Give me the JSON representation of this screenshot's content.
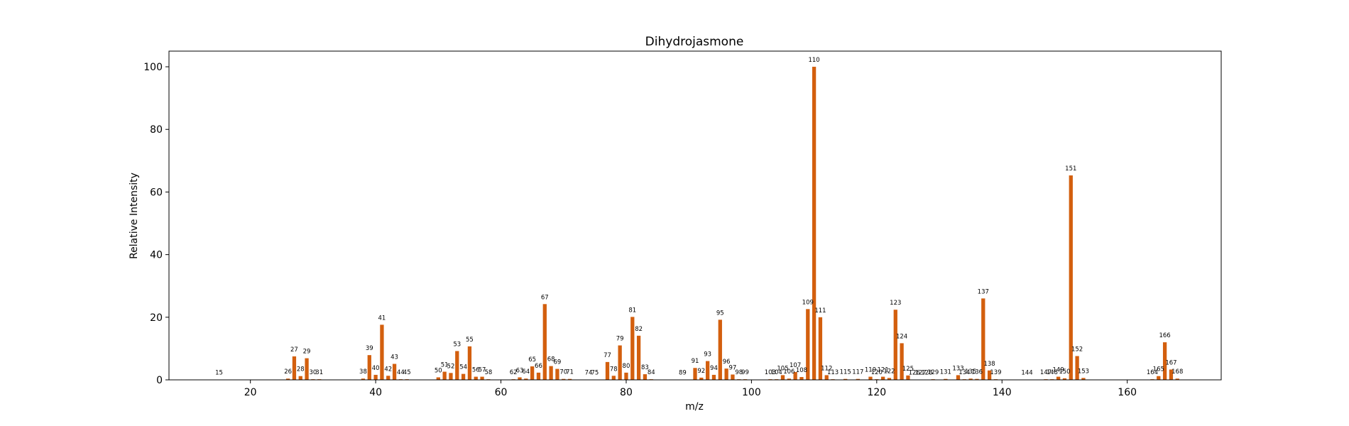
{
  "chart_data": {
    "type": "bar",
    "title": "Dihydrojasmone",
    "xlabel": "m/z",
    "ylabel": "Relative Intensity",
    "xlim": [
      7,
      175
    ],
    "ylim": [
      0,
      105
    ],
    "xticks": [
      20,
      40,
      60,
      80,
      100,
      120,
      140,
      160
    ],
    "yticks": [
      0,
      20,
      40,
      60,
      80,
      100
    ],
    "grid": false,
    "bar_color": "#d35f0e",
    "peaks": [
      {
        "mz": 15,
        "intensity": 0.1
      },
      {
        "mz": 26,
        "intensity": 0.4
      },
      {
        "mz": 27,
        "intensity": 7.5
      },
      {
        "mz": 28,
        "intensity": 1.2
      },
      {
        "mz": 29,
        "intensity": 6.9
      },
      {
        "mz": 30,
        "intensity": 0.2
      },
      {
        "mz": 31,
        "intensity": 0.2
      },
      {
        "mz": 38,
        "intensity": 0.4
      },
      {
        "mz": 39,
        "intensity": 7.9
      },
      {
        "mz": 40,
        "intensity": 1.6
      },
      {
        "mz": 41,
        "intensity": 17.6
      },
      {
        "mz": 42,
        "intensity": 1.3
      },
      {
        "mz": 43,
        "intensity": 5.1
      },
      {
        "mz": 44,
        "intensity": 0.2
      },
      {
        "mz": 45,
        "intensity": 0.2
      },
      {
        "mz": 50,
        "intensity": 0.8
      },
      {
        "mz": 51,
        "intensity": 2.6
      },
      {
        "mz": 52,
        "intensity": 2.2
      },
      {
        "mz": 53,
        "intensity": 9.2
      },
      {
        "mz": 54,
        "intensity": 1.9
      },
      {
        "mz": 55,
        "intensity": 10.7
      },
      {
        "mz": 56,
        "intensity": 1.0
      },
      {
        "mz": 57,
        "intensity": 1.0
      },
      {
        "mz": 58,
        "intensity": 0.2
      },
      {
        "mz": 62,
        "intensity": 0.2
      },
      {
        "mz": 63,
        "intensity": 0.8
      },
      {
        "mz": 64,
        "intensity": 0.4
      },
      {
        "mz": 65,
        "intensity": 4.3
      },
      {
        "mz": 66,
        "intensity": 2.3
      },
      {
        "mz": 67,
        "intensity": 24.2
      },
      {
        "mz": 68,
        "intensity": 4.4
      },
      {
        "mz": 69,
        "intensity": 3.5
      },
      {
        "mz": 70,
        "intensity": 0.3
      },
      {
        "mz": 71,
        "intensity": 0.3
      },
      {
        "mz": 74,
        "intensity": 0.1
      },
      {
        "mz": 75,
        "intensity": 0.1
      },
      {
        "mz": 77,
        "intensity": 5.7
      },
      {
        "mz": 78,
        "intensity": 1.3
      },
      {
        "mz": 79,
        "intensity": 11.0
      },
      {
        "mz": 80,
        "intensity": 2.3
      },
      {
        "mz": 81,
        "intensity": 20.1
      },
      {
        "mz": 82,
        "intensity": 14.1
      },
      {
        "mz": 83,
        "intensity": 1.8
      },
      {
        "mz": 84,
        "intensity": 0.2
      },
      {
        "mz": 89,
        "intensity": 0.1
      },
      {
        "mz": 91,
        "intensity": 3.8
      },
      {
        "mz": 92,
        "intensity": 0.7
      },
      {
        "mz": 93,
        "intensity": 6.0
      },
      {
        "mz": 94,
        "intensity": 1.6
      },
      {
        "mz": 95,
        "intensity": 19.2
      },
      {
        "mz": 96,
        "intensity": 3.6
      },
      {
        "mz": 97,
        "intensity": 1.7
      },
      {
        "mz": 98,
        "intensity": 0.2
      },
      {
        "mz": 99,
        "intensity": 0.2
      },
      {
        "mz": 103,
        "intensity": 0.2
      },
      {
        "mz": 104,
        "intensity": 0.2
      },
      {
        "mz": 105,
        "intensity": 1.5
      },
      {
        "mz": 106,
        "intensity": 0.4
      },
      {
        "mz": 107,
        "intensity": 2.5
      },
      {
        "mz": 108,
        "intensity": 0.9
      },
      {
        "mz": 109,
        "intensity": 22.6
      },
      {
        "mz": 110,
        "intensity": 100
      },
      {
        "mz": 111,
        "intensity": 20.0
      },
      {
        "mz": 112,
        "intensity": 1.5
      },
      {
        "mz": 113,
        "intensity": 0.2
      },
      {
        "mz": 115,
        "intensity": 0.3
      },
      {
        "mz": 117,
        "intensity": 0.3
      },
      {
        "mz": 119,
        "intensity": 1.0
      },
      {
        "mz": 120,
        "intensity": 0.2
      },
      {
        "mz": 121,
        "intensity": 1.0
      },
      {
        "mz": 122,
        "intensity": 0.6
      },
      {
        "mz": 123,
        "intensity": 22.4
      },
      {
        "mz": 124,
        "intensity": 11.7
      },
      {
        "mz": 125,
        "intensity": 1.4
      },
      {
        "mz": 126,
        "intensity": 0.1
      },
      {
        "mz": 127,
        "intensity": 0.1
      },
      {
        "mz": 128,
        "intensity": 0.1
      },
      {
        "mz": 129,
        "intensity": 0.2
      },
      {
        "mz": 131,
        "intensity": 0.3
      },
      {
        "mz": 133,
        "intensity": 1.5
      },
      {
        "mz": 134,
        "intensity": 0.2
      },
      {
        "mz": 135,
        "intensity": 0.4
      },
      {
        "mz": 136,
        "intensity": 0.3
      },
      {
        "mz": 137,
        "intensity": 26.0
      },
      {
        "mz": 138,
        "intensity": 3.0
      },
      {
        "mz": 139,
        "intensity": 0.2
      },
      {
        "mz": 144,
        "intensity": 0.1
      },
      {
        "mz": 147,
        "intensity": 0.2
      },
      {
        "mz": 148,
        "intensity": 0.2
      },
      {
        "mz": 149,
        "intensity": 1.0
      },
      {
        "mz": 150,
        "intensity": 0.5
      },
      {
        "mz": 151,
        "intensity": 65.3
      },
      {
        "mz": 152,
        "intensity": 7.6
      },
      {
        "mz": 153,
        "intensity": 0.6
      },
      {
        "mz": 164,
        "intensity": 0.2
      },
      {
        "mz": 165,
        "intensity": 1.2
      },
      {
        "mz": 166,
        "intensity": 12.0
      },
      {
        "mz": 167,
        "intensity": 3.3
      },
      {
        "mz": 168,
        "intensity": 0.4
      }
    ]
  }
}
